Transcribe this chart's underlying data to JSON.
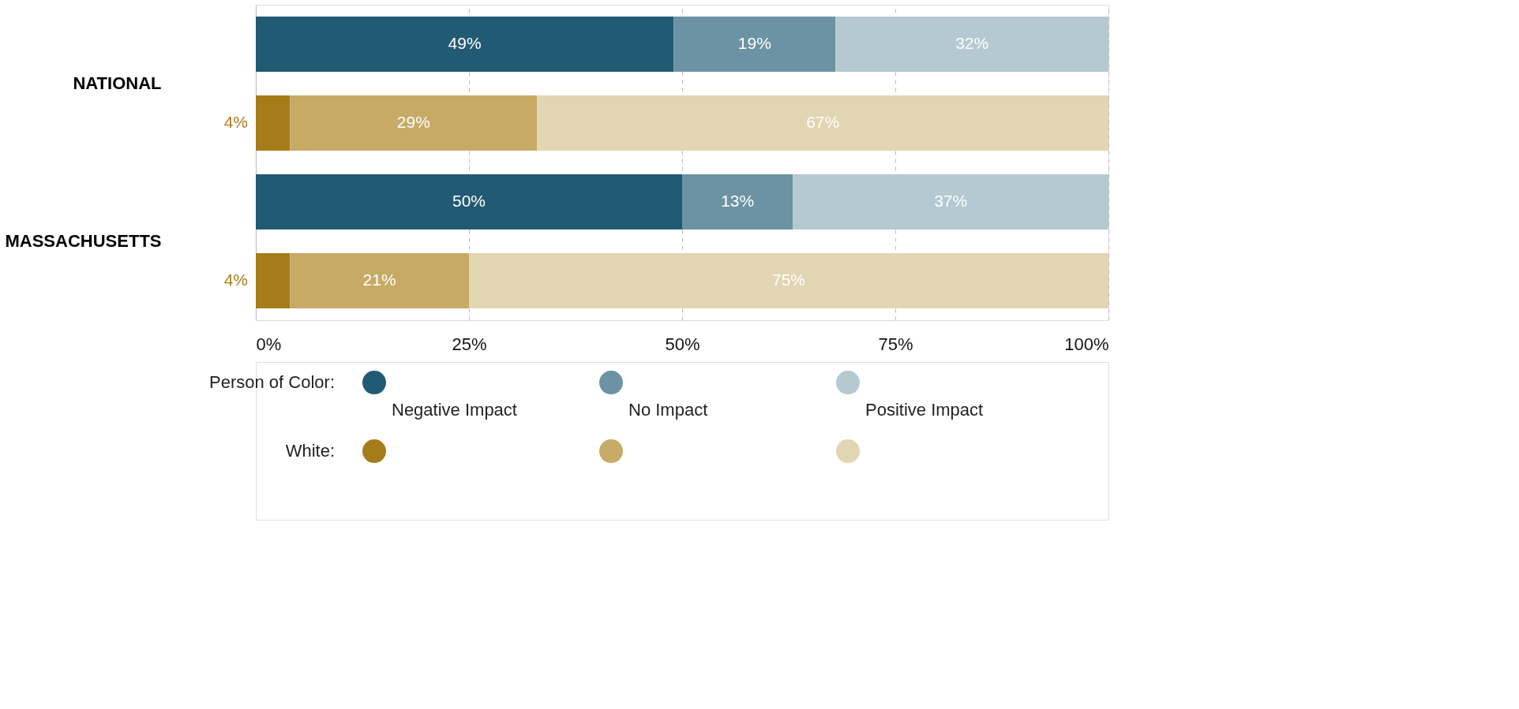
{
  "chart_data": {
    "type": "bar",
    "orientation": "horizontal",
    "stacked": true,
    "categories": [
      "NATIONAL",
      null,
      "MASSACHUSETTS",
      null
    ],
    "series": [
      {
        "name": "Negative Impact",
        "colors": [
          "#215a73",
          "#a67c1a",
          "#215a73",
          "#a67c1a"
        ],
        "values": [
          49,
          4,
          50,
          4
        ],
        "value_labels": [
          "49%",
          "4%",
          "50%",
          "4%"
        ]
      },
      {
        "name": "No Impact",
        "colors": [
          "#6b93a3",
          "#c7aa66",
          "#6b93a3",
          "#c7aa66"
        ],
        "values": [
          19,
          29,
          13,
          21
        ],
        "value_labels": [
          "19%",
          "29%",
          "13%",
          "21%"
        ]
      },
      {
        "name": "Positive Impact",
        "colors": [
          "#b5c9d0",
          "#e2d5b2",
          "#b5c9d0",
          "#e2d5b2"
        ],
        "values": [
          32,
          67,
          37,
          75
        ],
        "value_labels": [
          "32%",
          "67%",
          "37%",
          "75%"
        ]
      }
    ],
    "xlim": [
      0,
      100
    ],
    "xticks": [
      {
        "value": 0,
        "label": "0%"
      },
      {
        "value": 25,
        "label": "25%"
      },
      {
        "value": 50,
        "label": "50%"
      },
      {
        "value": 75,
        "label": "75%"
      },
      {
        "value": 100,
        "label": "100%"
      }
    ],
    "grid": "x",
    "legend": "bottom",
    "annotations": [
      "Person of Color:",
      "White:"
    ]
  }
}
